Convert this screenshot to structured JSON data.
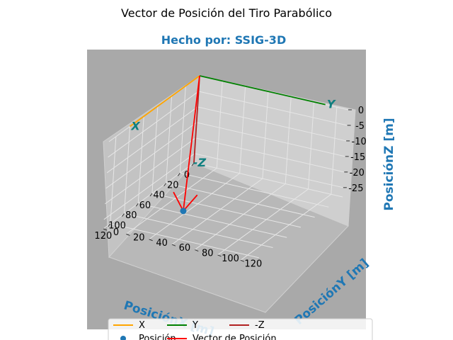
{
  "chart_data": {
    "type": "line",
    "projection": "3d",
    "title": "Vector de Posición del Tiro Parabólico",
    "subtitle": "Hecho por: SSIG-3D",
    "xlabel": "PosiciónX [m]",
    "ylabel": "PosiciónY [m]",
    "zlabel": "PosiciónZ [m]",
    "xlim": [
      0,
      130
    ],
    "ylim": [
      0,
      130
    ],
    "zlim": [
      -28,
      0
    ],
    "xticks": [
      "0",
      "20",
      "40",
      "60",
      "80",
      "100",
      "120"
    ],
    "yticks": [
      "0",
      "20",
      "40",
      "60",
      "80",
      "100",
      "120"
    ],
    "zticks": [
      "0",
      "-5",
      "-10",
      "-15",
      "-20",
      "-25"
    ],
    "background_color": "#a9a9a9",
    "grid": true,
    "legend_placement": "lower center",
    "series": [
      {
        "name": "X",
        "color": "#ffa500",
        "points": [
          [
            0,
            0,
            0
          ],
          [
            100,
            0,
            0
          ]
        ],
        "end_label": "X"
      },
      {
        "name": "Y",
        "color": "#008000",
        "points": [
          [
            0,
            0,
            0
          ],
          [
            0,
            110,
            0
          ]
        ],
        "end_label": "Y"
      },
      {
        "name": "-Z",
        "color": "#b22222",
        "points": [
          [
            0,
            0,
            0
          ],
          [
            0,
            0,
            -28
          ]
        ],
        "end_label": "-Z"
      },
      {
        "name": "Vector de Posición",
        "color": "#ff0000",
        "points": [
          [
            0,
            0,
            0
          ],
          [
            90,
            45,
            -25
          ]
        ],
        "arrow": true
      },
      {
        "name": "Posición",
        "color": "#1f77b4",
        "type": "scatter",
        "points": [
          [
            90,
            45,
            -25
          ]
        ]
      }
    ],
    "legend": [
      "X",
      "Y",
      "-Z",
      "Posición",
      "Vector de Posición"
    ]
  }
}
